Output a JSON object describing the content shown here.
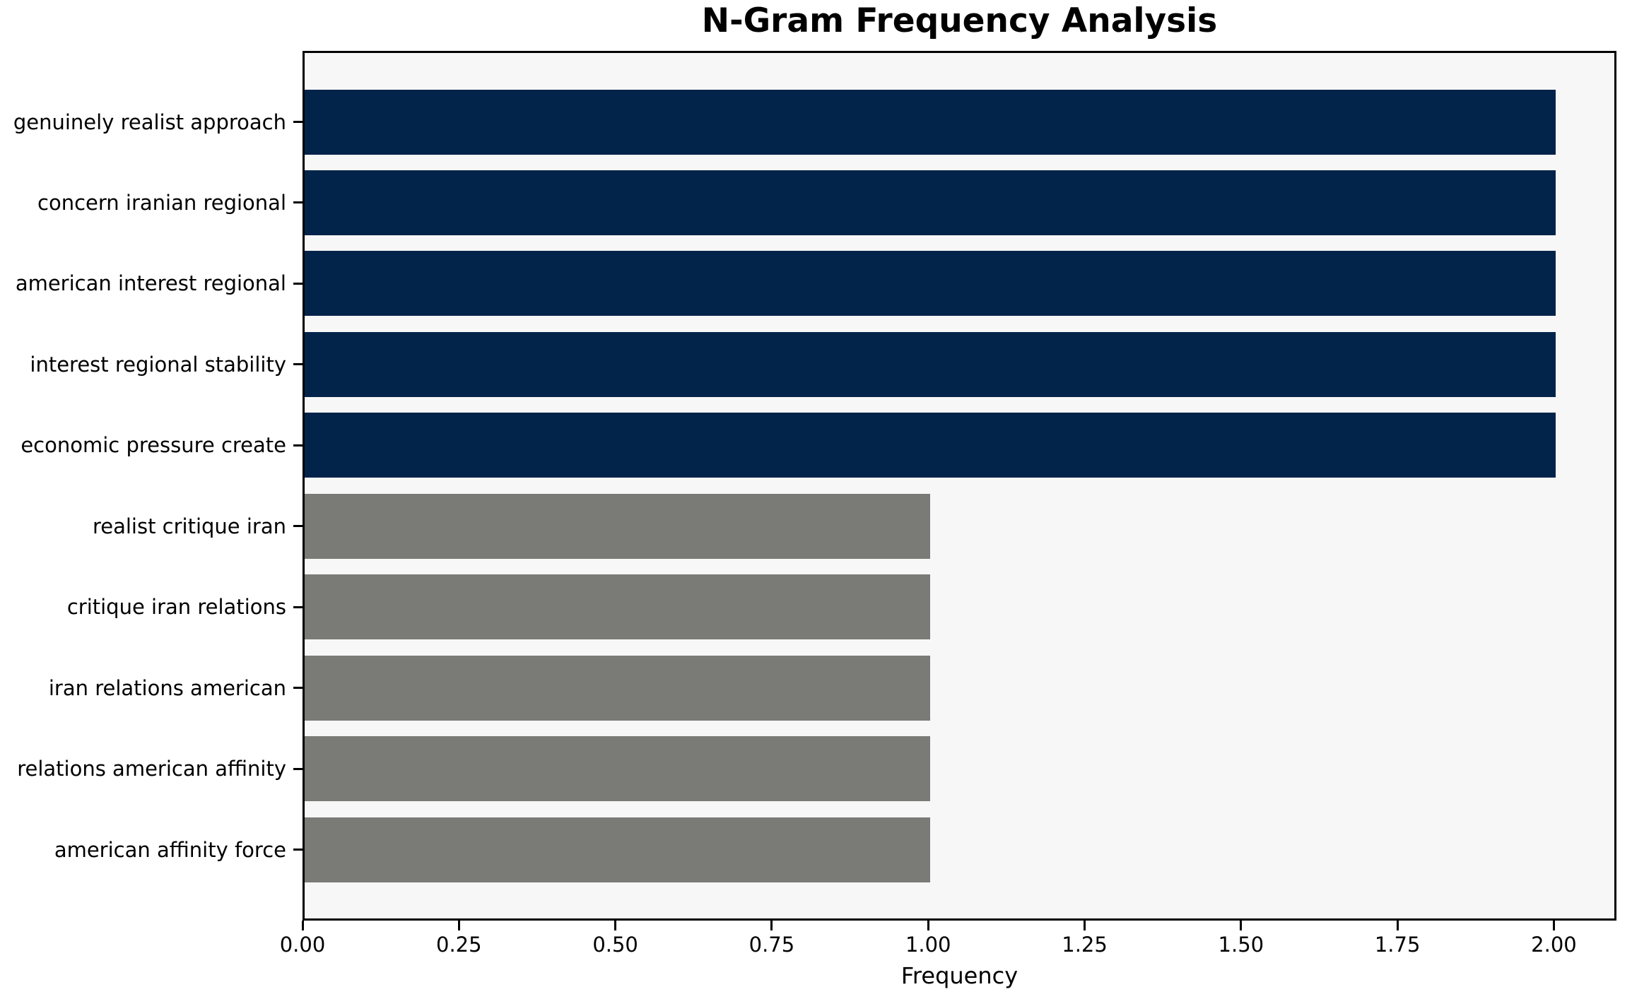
{
  "chart_data": {
    "type": "bar",
    "orientation": "horizontal",
    "title": "N-Gram Frequency Analysis",
    "xlabel": "Frequency",
    "ylabel": "",
    "categories": [
      "genuinely realist approach",
      "concern iranian regional",
      "american interest regional",
      "interest regional stability",
      "economic pressure create",
      "realist critique iran",
      "critique iran relations",
      "iran relations american",
      "relations american affinity",
      "american affinity force"
    ],
    "values": [
      2,
      2,
      2,
      2,
      2,
      1,
      1,
      1,
      1,
      1
    ],
    "bar_colors": [
      "#02234a",
      "#02234a",
      "#02234a",
      "#02234a",
      "#02234a",
      "#7a7a76",
      "#7a7a76",
      "#7a7a76",
      "#7a7a76",
      "#7a7a76"
    ],
    "xlim": [
      0,
      2.1
    ],
    "xticks": [
      0,
      0.25,
      0.5,
      0.75,
      1.0,
      1.25,
      1.5,
      1.75,
      2.0
    ],
    "xtick_labels": [
      "0.00",
      "0.25",
      "0.50",
      "0.75",
      "1.00",
      "1.25",
      "1.50",
      "1.75",
      "2.00"
    ],
    "grid": false,
    "legend": "none",
    "plot_background": "#f7f7f7",
    "figure_background": "#ffffff",
    "spine_color": "#000000",
    "colors": {
      "high_frequency_bar": "#02234a",
      "low_frequency_bar": "#7a7a76"
    }
  }
}
